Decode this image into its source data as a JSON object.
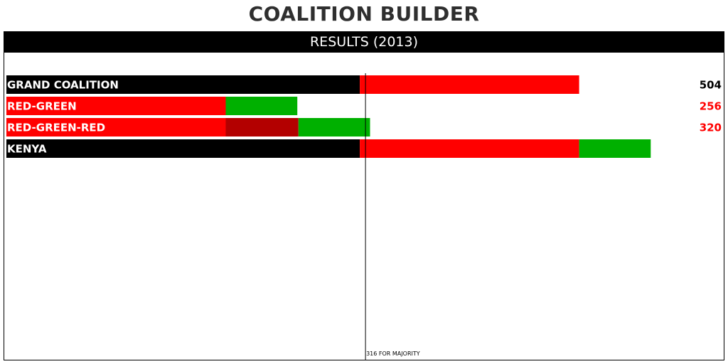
{
  "app": {
    "title": "COALITION BUILDER"
  },
  "panel": {
    "header": "RESULTS (2013)"
  },
  "colors": {
    "black": "#000000",
    "red": "#ff0000",
    "dark_red": "#b30000",
    "green": "#00b000",
    "white": "#ffffff"
  },
  "chart_data": {
    "type": "bar",
    "orientation": "horizontal",
    "stacked": true,
    "title": "RESULTS (2013)",
    "xlim": [
      0,
      630
    ],
    "majority": {
      "value": 316,
      "label": "316 FOR MAJORITY"
    },
    "coalitions": [
      {
        "name": "GRAND COALITION",
        "total": "504",
        "total_color": "#000000",
        "segments": [
          {
            "value": 311,
            "color": "#000000"
          },
          {
            "value": 193,
            "color": "#ff0000"
          }
        ]
      },
      {
        "name": "RED-GREEN",
        "total": "256",
        "total_color": "#ff0000",
        "segments": [
          {
            "value": 193,
            "color": "#ff0000"
          },
          {
            "value": 63,
            "color": "#00b000"
          }
        ]
      },
      {
        "name": "RED-GREEN-RED",
        "total": "320",
        "total_color": "#ff0000",
        "segments": [
          {
            "value": 193,
            "color": "#ff0000"
          },
          {
            "value": 64,
            "color": "#b30000"
          },
          {
            "value": 63,
            "color": "#00b000"
          }
        ]
      },
      {
        "name": "KENYA",
        "total": "567",
        "total_color": "#ffffff",
        "segments": [
          {
            "value": 311,
            "color": "#000000"
          },
          {
            "value": 193,
            "color": "#ff0000"
          },
          {
            "value": 63,
            "color": "#00b000"
          }
        ]
      }
    ]
  }
}
